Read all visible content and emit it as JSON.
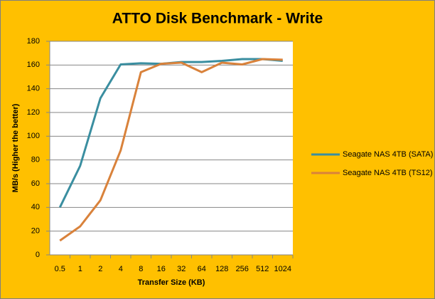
{
  "chart_data": {
    "type": "line",
    "title": "ATTO Disk Benchmark - Write",
    "x_label": "Transfer Size (KB)",
    "y_label": "MB/s (Higher the better)",
    "categories": [
      "0.5",
      "1",
      "2",
      "4",
      "8",
      "16",
      "32",
      "64",
      "128",
      "256",
      "512",
      "1024"
    ],
    "series": [
      {
        "name": "Seagate NAS 4TB (SATA)",
        "color": "#3A8EA0",
        "values": [
          40,
          75,
          132,
          160.5,
          161.5,
          161,
          162.5,
          162.5,
          163.5,
          165,
          165,
          163.5
        ]
      },
      {
        "name": "Seagate NAS 4TB (TS12)",
        "color": "#D9823B",
        "values": [
          12,
          24,
          46,
          88,
          154,
          161,
          162,
          154,
          162,
          160.5,
          165,
          164.5
        ]
      }
    ],
    "ylim": [
      0,
      180
    ],
    "yticks": [
      0,
      20,
      40,
      60,
      80,
      100,
      120,
      140,
      160,
      180
    ],
    "grid": true,
    "legend": "right"
  }
}
